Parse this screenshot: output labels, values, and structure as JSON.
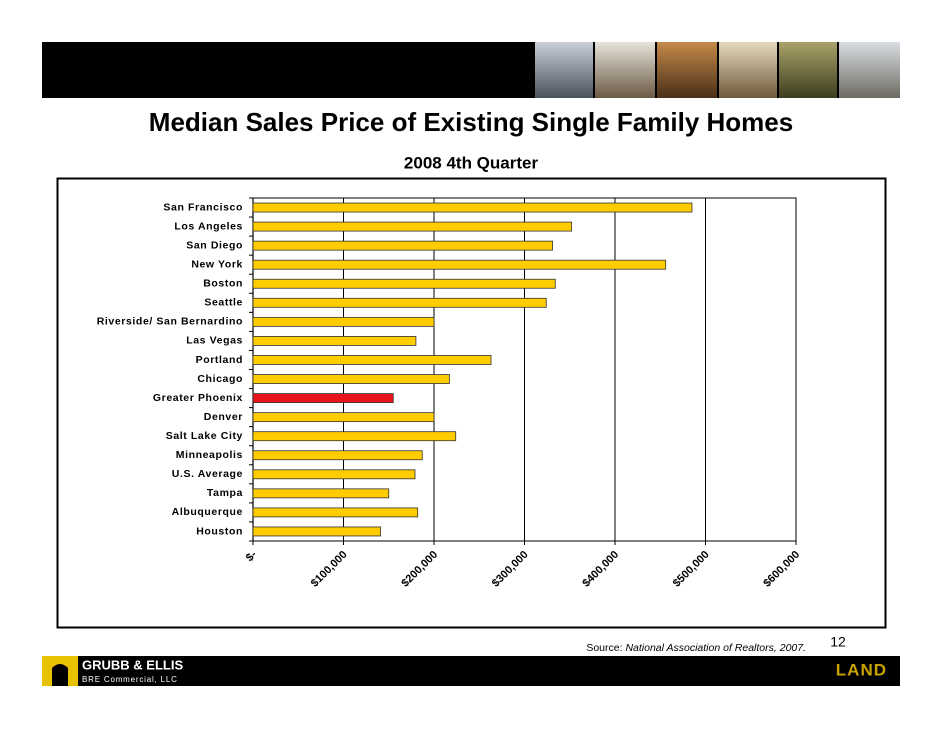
{
  "chart_data": {
    "type": "bar",
    "orientation": "horizontal",
    "title": "Median Sales Price of Existing Single Family Homes",
    "subtitle": "2008 4th Quarter",
    "categories": [
      "San Francisco",
      "Los Angeles",
      "San Diego",
      "New York",
      "Boston",
      "Seattle",
      "Riverside/ San Bernardino",
      "Las Vegas",
      "Portland",
      "Chicago",
      "Greater Phoenix",
      "Denver",
      "Salt Lake City",
      "Minneapolis",
      "U.S. Average",
      "Tampa",
      "Albuquerque",
      "Houston"
    ],
    "values": [
      485000,
      352000,
      331000,
      456000,
      334000,
      324000,
      200000,
      180000,
      263000,
      217000,
      155000,
      200000,
      224000,
      187000,
      179000,
      150000,
      182000,
      141000
    ],
    "colors": [
      "#ffcc00",
      "#ffcc00",
      "#ffcc00",
      "#ffcc00",
      "#ffcc00",
      "#ffcc00",
      "#ffcc00",
      "#ffcc00",
      "#ffcc00",
      "#ffcc00",
      "#e8141b",
      "#ffcc00",
      "#ffcc00",
      "#ffcc00",
      "#ffcc00",
      "#ffcc00",
      "#ffcc00",
      "#ffcc00"
    ],
    "xlim": [
      0,
      600000
    ],
    "xticks": [
      {
        "value": 0,
        "label": "$-"
      },
      {
        "value": 100000,
        "label": "$100,000"
      },
      {
        "value": 200000,
        "label": "$200,000"
      },
      {
        "value": 300000,
        "label": "$300,000"
      },
      {
        "value": 400000,
        "label": "$400,000"
      },
      {
        "value": 500000,
        "label": "$500,000"
      },
      {
        "value": 600000,
        "label": "$600,000"
      }
    ],
    "grid": true,
    "source_label": "Source:",
    "source": "National Association of Realtors, 2007."
  },
  "page_number": "12",
  "footer": {
    "logo": "GRUBB & ELLIS",
    "logo_sub": "BRE Commercial, LLC",
    "division": "LAND"
  }
}
